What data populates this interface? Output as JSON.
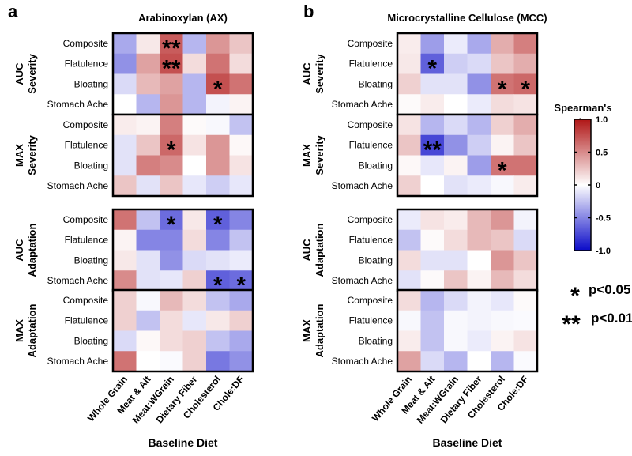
{
  "chart_data": {
    "type": "heatmap",
    "color_scale": {
      "title": "Spearman's rho",
      "min": -1.0,
      "max": 1.0,
      "ticks": [
        "1.0",
        "0.5",
        "0",
        "-0.5",
        "-1.0"
      ],
      "low_color": "#0a0ac8",
      "mid_color": "#ffffff",
      "high_color": "#b01616"
    },
    "significance_legend": [
      {
        "symbol": "*",
        "label": "p<0.05"
      },
      {
        "symbol": "**",
        "label": "p<0.01"
      }
    ],
    "columns": [
      "Whole Grain",
      "Meat & Alt",
      "Meat:WGrain",
      "Dietary Fiber",
      "Cholesterol",
      "Chole:DF"
    ],
    "rows": [
      "Composite",
      "Flatulence",
      "Bloating",
      "Stomach Ache"
    ],
    "xlabel": "Baseline Diet",
    "panels": [
      {
        "letter": "a",
        "title": "Arabinoxylan (AX)",
        "blocks": [
          {
            "label1": "AUC",
            "label2": "Severity",
            "values": [
              [
                -0.35,
                0.1,
                0.7,
                -0.3,
                0.45,
                0.25
              ],
              [
                -0.45,
                0.4,
                0.75,
                0.15,
                0.6,
                0.15
              ],
              [
                -0.15,
                0.3,
                0.4,
                -0.3,
                0.75,
                0.6
              ],
              [
                0.0,
                -0.3,
                0.45,
                -0.3,
                -0.05,
                0.05
              ]
            ],
            "sig": [
              [
                "",
                "",
                "**",
                "",
                "",
                ""
              ],
              [
                "",
                "",
                "**",
                "",
                "",
                ""
              ],
              [
                "",
                "",
                "",
                "",
                "*",
                ""
              ],
              [
                "",
                "",
                "",
                "",
                "",
                ""
              ]
            ]
          },
          {
            "label1": "MAX",
            "label2": "Severity",
            "values": [
              [
                0.08,
                0.05,
                0.55,
                0.02,
                -0.03,
                -0.25
              ],
              [
                -0.12,
                0.25,
                0.65,
                0.12,
                0.45,
                0.03
              ],
              [
                -0.12,
                0.55,
                0.5,
                0.0,
                0.45,
                0.12
              ],
              [
                0.25,
                -0.12,
                0.25,
                -0.1,
                -0.2,
                -0.1
              ]
            ],
            "sig": [
              [
                "",
                "",
                "",
                "",
                "",
                ""
              ],
              [
                "",
                "",
                "*",
                "",
                "",
                ""
              ],
              [
                "",
                "",
                "",
                "",
                "",
                ""
              ],
              [
                "",
                "",
                "",
                "",
                "",
                ""
              ]
            ]
          },
          {
            "label1": "AUC",
            "label2": "Adaptation",
            "values": [
              [
                0.6,
                -0.25,
                -0.6,
                0.1,
                -0.65,
                -0.5
              ],
              [
                0.05,
                -0.5,
                -0.5,
                0.15,
                -0.5,
                -0.25
              ],
              [
                0.1,
                -0.12,
                -0.45,
                -0.15,
                -0.12,
                -0.08
              ],
              [
                0.5,
                -0.12,
                -0.1,
                0.2,
                -0.65,
                -0.6
              ]
            ],
            "sig": [
              [
                "",
                "",
                "*",
                "",
                "*",
                ""
              ],
              [
                "",
                "",
                "",
                "",
                "",
                ""
              ],
              [
                "",
                "",
                "",
                "",
                "",
                ""
              ],
              [
                "",
                "",
                "",
                "",
                "*",
                "*"
              ]
            ]
          },
          {
            "label1": "MAX",
            "label2": "Adaptation",
            "values": [
              [
                0.2,
                -0.03,
                0.3,
                0.15,
                -0.25,
                -0.35
              ],
              [
                0.2,
                -0.25,
                0.15,
                -0.1,
                0.1,
                0.2
              ],
              [
                -0.15,
                0.03,
                0.15,
                0.2,
                -0.25,
                -0.35
              ],
              [
                0.6,
                0.0,
                -0.02,
                0.2,
                -0.55,
                -0.45
              ]
            ],
            "sig": [
              [
                "",
                "",
                "",
                "",
                "",
                ""
              ],
              [
                "",
                "",
                "",
                "",
                "",
                ""
              ],
              [
                "",
                "",
                "",
                "",
                "",
                ""
              ],
              [
                "",
                "",
                "",
                "",
                "",
                ""
              ]
            ]
          }
        ]
      },
      {
        "letter": "b",
        "title": "Microcrystalline Cellulose (MCC)",
        "blocks": [
          {
            "label1": "AUC",
            "label2": "Severity",
            "values": [
              [
                0.08,
                -0.4,
                -0.08,
                -0.35,
                0.35,
                0.55
              ],
              [
                0.1,
                -0.65,
                -0.2,
                -0.15,
                0.25,
                0.35
              ],
              [
                0.2,
                -0.12,
                -0.12,
                -0.45,
                0.6,
                0.65
              ],
              [
                0.02,
                0.08,
                0.0,
                -0.08,
                0.15,
                0.12
              ]
            ],
            "sig": [
              [
                "",
                "",
                "",
                "",
                "",
                ""
              ],
              [
                "",
                "*",
                "",
                "",
                "",
                ""
              ],
              [
                "",
                "",
                "",
                "",
                "*",
                "*"
              ],
              [
                "",
                "",
                "",
                "",
                "",
                ""
              ]
            ]
          },
          {
            "label1": "MAX",
            "label2": "Severity",
            "values": [
              [
                0.12,
                -0.3,
                -0.15,
                -0.3,
                0.2,
                0.35
              ],
              [
                0.25,
                -0.75,
                -0.45,
                -0.2,
                0.05,
                0.25
              ],
              [
                0.03,
                -0.1,
                0.05,
                -0.4,
                0.6,
                0.6
              ],
              [
                0.2,
                0.0,
                -0.12,
                -0.08,
                -0.03,
                0.08
              ]
            ],
            "sig": [
              [
                "",
                "",
                "",
                "",
                "",
                ""
              ],
              [
                "",
                "**",
                "",
                "",
                "",
                ""
              ],
              [
                "",
                "",
                "",
                "",
                "*",
                ""
              ],
              [
                "",
                "",
                "",
                "",
                "",
                ""
              ]
            ]
          },
          {
            "label1": "AUC",
            "label2": "Adaptation",
            "values": [
              [
                -0.08,
                0.12,
                0.08,
                0.3,
                0.45,
                -0.05
              ],
              [
                -0.25,
                0.02,
                0.15,
                0.3,
                0.25,
                -0.15
              ],
              [
                0.15,
                -0.12,
                -0.12,
                0.0,
                0.45,
                0.25
              ],
              [
                -0.12,
                0.02,
                0.25,
                0.05,
                0.3,
                0.15
              ]
            ],
            "sig": [
              [
                "",
                "",
                "",
                "",
                "",
                ""
              ],
              [
                "",
                "",
                "",
                "",
                "",
                ""
              ],
              [
                "",
                "",
                "",
                "",
                "",
                ""
              ],
              [
                "",
                "",
                "",
                "",
                "",
                ""
              ]
            ]
          },
          {
            "label1": "MAX",
            "label2": "Adaptation",
            "values": [
              [
                0.15,
                -0.3,
                -0.15,
                -0.05,
                -0.1,
                0.02
              ],
              [
                -0.03,
                -0.25,
                -0.03,
                -0.05,
                -0.03,
                -0.02
              ],
              [
                0.08,
                -0.25,
                -0.03,
                -0.08,
                0.05,
                0.12
              ],
              [
                0.4,
                -0.15,
                -0.3,
                0.0,
                -0.3,
                -0.02
              ]
            ],
            "sig": [
              [
                "",
                "",
                "",
                "",
                "",
                ""
              ],
              [
                "",
                "",
                "",
                "",
                "",
                ""
              ],
              [
                "",
                "",
                "",
                "",
                "",
                ""
              ],
              [
                "",
                "",
                "",
                "",
                "",
                ""
              ]
            ]
          }
        ]
      }
    ]
  }
}
